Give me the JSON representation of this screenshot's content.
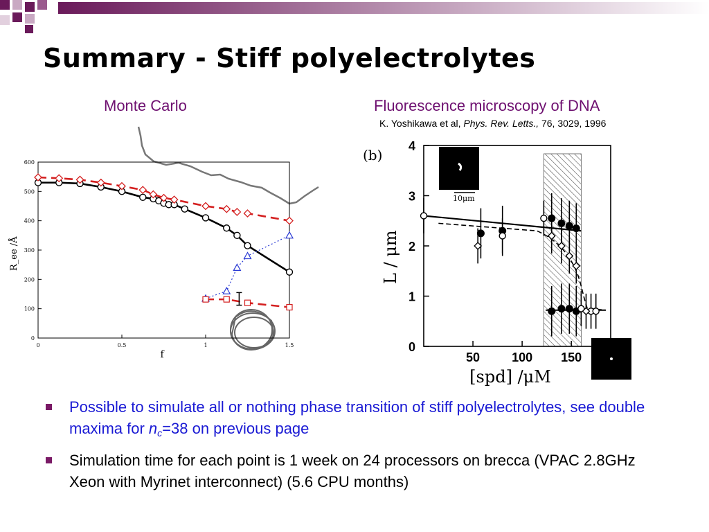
{
  "slide": {
    "title": "Summary - Stiff polyelectrolytes",
    "colors": {
      "title": "#000000",
      "caption": "#6e1070",
      "bullet_blue": "#1a1ad4",
      "deco_purple": "#6a1a5a"
    }
  },
  "left_panel": {
    "caption": "Monte Carlo"
  },
  "right_panel": {
    "caption": "Fluorescence microscopy of DNA",
    "citation": {
      "authors": "K. Yoshikawa et al,",
      "journal": "Phys. Rev. Letts.,",
      "details": "76, 3029, 1996"
    },
    "panel_label": "(b)",
    "scale_label": "10μm"
  },
  "bullets": [
    {
      "text_a": "Possible to simulate all or nothing phase transition of stiff polyelectrolytes, see double maxima for ",
      "text_var": "n",
      "text_sub": "c",
      "text_b": "=38 on previous page"
    },
    {
      "text": "Simulation time for each point is 1 week on 24 processors on brecca (VPAC 2.8GHz Xeon with Myrinet interconnect) (5.6 CPU months)"
    }
  ],
  "chart_data": [
    {
      "type": "line",
      "xlabel": "f",
      "ylabel": "R_ee /Å",
      "xlim": [
        0,
        1.5
      ],
      "ylim": [
        0,
        600
      ],
      "xticks": [
        "0",
        "0.5",
        "1",
        "1.5"
      ],
      "yticks": [
        "0",
        "100",
        "200",
        "300",
        "400",
        "500",
        "600"
      ],
      "series": [
        {
          "marker": "circle",
          "color": "#000000",
          "dash": "solid",
          "x": [
            0,
            0.125,
            0.25,
            0.375,
            0.5,
            0.625,
            0.6875,
            0.72,
            0.75,
            0.78,
            0.8125,
            0.875,
            1.0,
            1.125,
            1.1875,
            1.25,
            1.5
          ],
          "y": [
            530,
            530,
            527,
            515,
            500,
            480,
            475,
            468,
            460,
            455,
            455,
            440,
            410,
            375,
            350,
            315,
            225
          ]
        },
        {
          "marker": "diamond",
          "color": "#d42020",
          "dash": "dashed",
          "x": [
            0,
            0.125,
            0.25,
            0.375,
            0.5,
            0.625,
            0.6875,
            0.75,
            0.8125,
            1.0,
            1.125,
            1.1875,
            1.25,
            1.5
          ],
          "y": [
            548,
            545,
            540,
            530,
            518,
            505,
            490,
            478,
            472,
            450,
            440,
            430,
            425,
            400
          ]
        },
        {
          "marker": "triangle",
          "color": "#2a3ad4",
          "dash": "dotted",
          "x": [
            1.0,
            1.125,
            1.1875,
            1.25,
            1.5
          ],
          "y": [
            135,
            160,
            240,
            280,
            350
          ]
        },
        {
          "marker": "square",
          "color": "#d42020",
          "dash": "dashed",
          "x": [
            1.0,
            1.125,
            1.25,
            1.5
          ],
          "y": [
            132,
            132,
            120,
            105
          ]
        }
      ]
    },
    {
      "type": "scatter",
      "xlabel": "[spd] /μM",
      "ylabel": "L / μm",
      "xlim": [
        0,
        190
      ],
      "ylim": [
        0,
        4
      ],
      "xticks": [
        "50",
        "100",
        "150"
      ],
      "yticks": [
        "0",
        "1",
        "2",
        "3",
        "4"
      ],
      "shaded_region": [
        122,
        160
      ],
      "series": [
        {
          "marker": "filled-circle",
          "x": [
            58,
            80,
            130,
            140,
            148,
            155,
            130,
            140,
            148,
            155
          ],
          "y": [
            2.25,
            2.3,
            2.55,
            2.45,
            2.4,
            2.35,
            0.7,
            0.75,
            0.75,
            0.7
          ]
        },
        {
          "marker": "open-circle",
          "x": [
            0,
            80,
            122,
            160,
            170,
            175
          ],
          "y": [
            2.6,
            2.2,
            2.55,
            0.75,
            0.7,
            0.7
          ]
        },
        {
          "marker": "open-diamond",
          "x": [
            55,
            130,
            140,
            148,
            155,
            165
          ],
          "y": [
            2.0,
            2.2,
            2.0,
            1.8,
            1.6,
            0.7
          ]
        }
      ]
    }
  ]
}
